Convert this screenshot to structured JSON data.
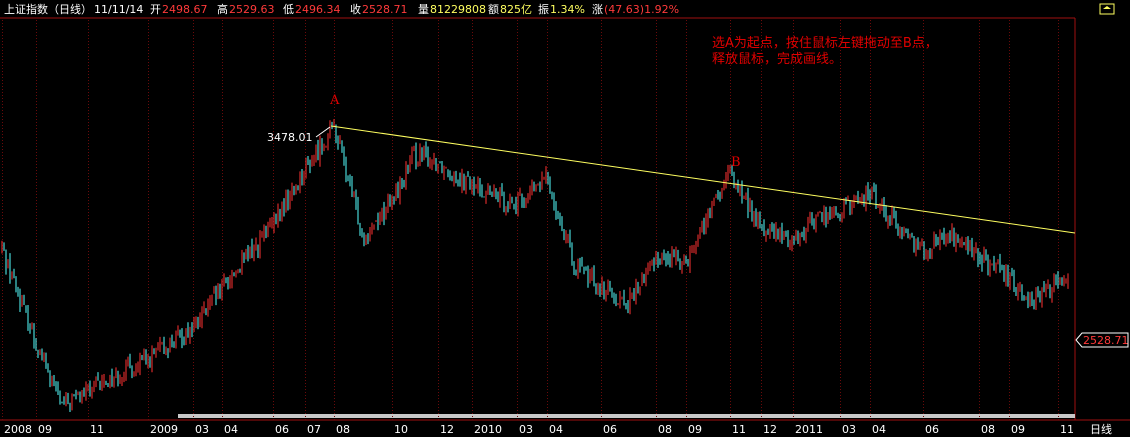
{
  "header": {
    "title": "上证指数（日线）",
    "date": "11/11/14",
    "open_label": "开",
    "open": "2498.67",
    "high_label": "高",
    "high": "2529.63",
    "low_label": "低",
    "low": "2496.34",
    "close_label": "收",
    "close": "2528.71",
    "volume_label": "量",
    "volume": "81229808",
    "amount_label": "额",
    "amount": "825亿",
    "amplitude_label": "振",
    "amplitude": "1.34%",
    "change_label": "涨",
    "change": "(47.63)1.92%"
  },
  "annotation": {
    "line1": "选A为起点，按住鼠标左键拖动至B点，",
    "line2": "释放鼠标，完成画线。",
    "point_a_label": "A",
    "point_b_label": "B",
    "peak_value": "3478.01",
    "current_price": "2528.71"
  },
  "period_label": "日线",
  "colors": {
    "background": "#000000",
    "grid": "#6a0a0a",
    "up_candle": "#ff3232",
    "down_candle": "#54ffff",
    "trendline": "#ffff60",
    "header_text": "#ffffff",
    "header_value": "#ff3a3a",
    "annotation_text": "#e00000",
    "axis_border": "#a01010"
  },
  "chart_data": {
    "type": "candlestick",
    "series_note": "",
    "ylim": [
      1664,
      3478.01
    ],
    "x_tick_labels": [
      "2008",
      "09",
      "11",
      "2009",
      "03",
      "04",
      "06",
      "07",
      "08",
      "10",
      "12",
      "2010",
      "03",
      "04",
      "06",
      "08",
      "09",
      "11",
      "12",
      "2011",
      "03",
      "04",
      "06",
      "08",
      "09",
      "11"
    ],
    "peak": {
      "label": "A",
      "date": "2009-08",
      "value": 3478.01
    },
    "trendline": {
      "from_label": "A",
      "to_label": "B",
      "from_date": "2009-08",
      "from_value": 3478.01,
      "to_date": "2010-11",
      "to_value": 3186
    },
    "path": [
      {
        "date": "2008-07",
        "close": 2700
      },
      {
        "date": "2008-09",
        "close": 2100
      },
      {
        "date": "2008-10",
        "close": 1700
      },
      {
        "date": "2008-12",
        "close": 1900
      },
      {
        "date": "2009-01",
        "close": 1990
      },
      {
        "date": "2009-02",
        "close": 2100
      },
      {
        "date": "2009-03",
        "close": 2200
      },
      {
        "date": "2009-04",
        "close": 2450
      },
      {
        "date": "2009-06",
        "close": 2850
      },
      {
        "date": "2009-07",
        "close": 3200
      },
      {
        "date": "2009-08",
        "close": 3478
      },
      {
        "date": "2009-09",
        "close": 2780
      },
      {
        "date": "2009-10",
        "close": 3000
      },
      {
        "date": "2009-11",
        "close": 3300
      },
      {
        "date": "2009-12",
        "close": 3250
      },
      {
        "date": "2010-01",
        "close": 3100
      },
      {
        "date": "2010-03",
        "close": 2980
      },
      {
        "date": "2010-04",
        "close": 3150
      },
      {
        "date": "2010-05",
        "close": 2600
      },
      {
        "date": "2010-06",
        "close": 2460
      },
      {
        "date": "2010-07",
        "close": 2350
      },
      {
        "date": "2010-08",
        "close": 2650
      },
      {
        "date": "2010-09",
        "close": 2630
      },
      {
        "date": "2010-10",
        "close": 2900
      },
      {
        "date": "2010-11",
        "close": 3180
      },
      {
        "date": "2010-12",
        "close": 2830
      },
      {
        "date": "2011-01",
        "close": 2750
      },
      {
        "date": "2011-02",
        "close": 2900
      },
      {
        "date": "2011-03",
        "close": 2930
      },
      {
        "date": "2011-04",
        "close": 3060
      },
      {
        "date": "2011-05",
        "close": 2850
      },
      {
        "date": "2011-06",
        "close": 2700
      },
      {
        "date": "2011-07",
        "close": 2790
      },
      {
        "date": "2011-08",
        "close": 2650
      },
      {
        "date": "2011-09",
        "close": 2500
      },
      {
        "date": "2011-10",
        "close": 2370
      },
      {
        "date": "2011-11",
        "close": 2528.71
      }
    ]
  }
}
